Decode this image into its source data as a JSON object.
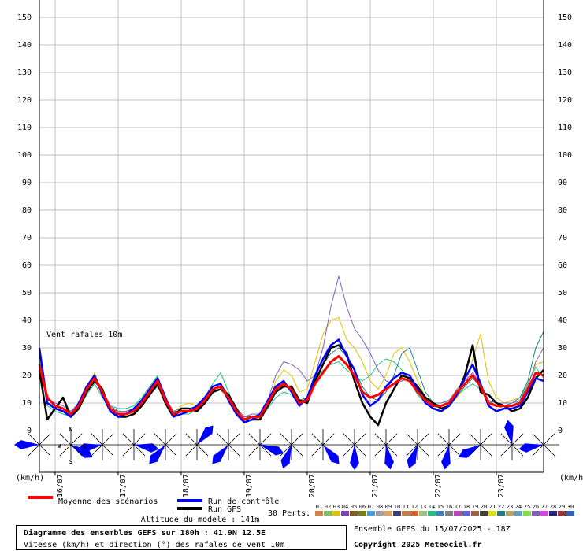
{
  "chart_data": {
    "type": "line",
    "title": "Diagramme des ensembles GEFS sur 180h : 41.9N 12.5E",
    "subtitle": "Vitesse (km/h) et direction (°) des rafales de vent 10m",
    "annotation": "Vent rafales 10m",
    "y_label": "(km/h)",
    "altitude": "Altitude du modele : 141m",
    "run_info": "Ensemble GEFS du 15/07/2025 - 18Z",
    "copyright": "Copyright 2025 Meteociel.fr",
    "perturbations_label": "30 Perts.",
    "compass": [
      "N",
      "W",
      "E",
      "S"
    ],
    "grid": true,
    "xlim": [
      0,
      192
    ],
    "xticks": [
      {
        "value": 6,
        "label": "16/07"
      },
      {
        "value": 30,
        "label": "17/07"
      },
      {
        "value": 54,
        "label": "18/07"
      },
      {
        "value": 78,
        "label": "19/07"
      },
      {
        "value": 102,
        "label": "20/07"
      },
      {
        "value": 126,
        "label": "21/07"
      },
      {
        "value": 150,
        "label": "22/07"
      },
      {
        "value": 174,
        "label": "23/07"
      }
    ],
    "ylim": [
      0,
      150
    ],
    "yticks": [
      0,
      10,
      20,
      30,
      40,
      50,
      60,
      70,
      80,
      90,
      100,
      110,
      120,
      130,
      140,
      150
    ],
    "x": [
      0,
      3,
      6,
      9,
      12,
      15,
      18,
      21,
      24,
      27,
      30,
      33,
      36,
      39,
      42,
      45,
      48,
      51,
      54,
      57,
      60,
      63,
      66,
      69,
      72,
      75,
      78,
      81,
      84,
      87,
      90,
      93,
      96,
      99,
      102,
      105,
      108,
      111,
      114,
      117,
      120,
      123,
      126,
      129,
      132,
      135,
      138,
      141,
      144,
      147,
      150,
      153,
      156,
      159,
      162,
      165,
      168,
      171,
      174,
      177,
      180,
      183,
      186,
      189,
      192
    ],
    "series": [
      {
        "name": "Moyenne des scénarios",
        "color": "#ff0000",
        "values": [
          24,
          12,
          9,
          8,
          6,
          9,
          15,
          19,
          14,
          8,
          6,
          6,
          7,
          10,
          14,
          18,
          11,
          6,
          7,
          7,
          8,
          11,
          15,
          16,
          12,
          7,
          4,
          5,
          5,
          10,
          15,
          17,
          15,
          10,
          11,
          17,
          21,
          25,
          27,
          24,
          20,
          14,
          12,
          13,
          15,
          17,
          19,
          18,
          14,
          11,
          9,
          9,
          10,
          14,
          17,
          20,
          16,
          10,
          9,
          9,
          9,
          10,
          15,
          21,
          20
        ]
      },
      {
        "name": "Run de contrôle",
        "color": "#0000ff",
        "values": [
          30,
          10,
          8,
          7,
          5,
          10,
          16,
          20,
          13,
          7,
          5,
          6,
          8,
          11,
          15,
          19,
          12,
          5,
          6,
          7,
          9,
          12,
          16,
          17,
          11,
          6,
          3,
          4,
          6,
          11,
          16,
          18,
          14,
          9,
          12,
          20,
          26,
          31,
          33,
          27,
          22,
          13,
          9,
          11,
          16,
          19,
          21,
          20,
          15,
          10,
          8,
          7,
          9,
          13,
          19,
          24,
          17,
          9,
          7,
          8,
          8,
          9,
          14,
          19,
          18
        ]
      },
      {
        "name": "Run GFS",
        "color": "#000000",
        "values": [
          22,
          4,
          8,
          12,
          5,
          8,
          14,
          18,
          15,
          7,
          5,
          5,
          6,
          9,
          13,
          17,
          10,
          5,
          8,
          8,
          7,
          10,
          14,
          15,
          13,
          8,
          3,
          4,
          4,
          9,
          14,
          16,
          16,
          11,
          10,
          18,
          24,
          30,
          31,
          28,
          18,
          10,
          5,
          2,
          10,
          15,
          20,
          19,
          16,
          12,
          10,
          8,
          9,
          13,
          20,
          31,
          14,
          13,
          10,
          9,
          7,
          8,
          12,
          19,
          22
        ]
      }
    ],
    "perturbations": [
      {
        "label": "01",
        "color": "#e08040"
      },
      {
        "label": "02",
        "color": "#80c060"
      },
      {
        "label": "03",
        "color": "#e0c000",
        "values": [
          20,
          13,
          8,
          7,
          6,
          8,
          14,
          21,
          13,
          7,
          5,
          5,
          6,
          9,
          13,
          17,
          10,
          6,
          9,
          10,
          9,
          10,
          14,
          15,
          11,
          6,
          4,
          5,
          4,
          9,
          18,
          22,
          20,
          14,
          15,
          25,
          35,
          40,
          41,
          33,
          30,
          25,
          18,
          15,
          20,
          28,
          30,
          25,
          18,
          12,
          8,
          7,
          9,
          12,
          16,
          26,
          35,
          18,
          12,
          10,
          11,
          12,
          17,
          24,
          25
        ]
      },
      {
        "label": "04",
        "color": "#8040c0"
      },
      {
        "label": "05",
        "color": "#806020"
      },
      {
        "label": "06",
        "color": "#808000"
      },
      {
        "label": "07",
        "color": "#40a0e0"
      },
      {
        "label": "08",
        "color": "#a0a0a0"
      },
      {
        "label": "09",
        "color": "#e0a060"
      },
      {
        "label": "10",
        "color": "#404080"
      },
      {
        "label": "11",
        "color": "#c08040"
      },
      {
        "label": "12",
        "color": "#e06020"
      },
      {
        "label": "13",
        "color": "#a0c080"
      },
      {
        "label": "14",
        "color": "#20c080",
        "values": [
          26,
          9,
          7,
          6,
          5,
          8,
          13,
          17,
          12,
          9,
          8,
          8,
          9,
          12,
          16,
          20,
          11,
          6,
          6,
          6,
          8,
          12,
          17,
          21,
          14,
          7,
          4,
          4,
          5,
          8,
          12,
          14,
          13,
          9,
          12,
          18,
          22,
          24,
          25,
          22,
          20,
          18,
          20,
          24,
          26,
          25,
          22,
          18,
          13,
          10,
          8,
          9,
          11,
          13,
          15,
          17,
          15,
          11,
          9,
          8,
          9,
          11,
          17,
          23,
          19
        ]
      },
      {
        "label": "15",
        "color": "#4080c0"
      },
      {
        "label": "16",
        "color": "#808080"
      },
      {
        "label": "17",
        "color": "#c040c0"
      },
      {
        "label": "18",
        "color": "#6060e0"
      },
      {
        "label": "19",
        "color": "#a06040"
      },
      {
        "label": "20",
        "color": "#404040"
      },
      {
        "label": "21",
        "color": "#e0e000"
      },
      {
        "label": "22",
        "color": "#208080",
        "values": [
          24,
          10,
          9,
          8,
          7,
          9,
          14,
          18,
          14,
          8,
          7,
          7,
          8,
          10,
          13,
          16,
          11,
          7,
          7,
          7,
          8,
          10,
          14,
          15,
          12,
          8,
          5,
          5,
          6,
          10,
          14,
          16,
          15,
          11,
          12,
          19,
          24,
          28,
          30,
          27,
          22,
          16,
          12,
          11,
          14,
          20,
          28,
          30,
          22,
          14,
          10,
          9,
          10,
          13,
          16,
          19,
          16,
          11,
          9,
          9,
          10,
          12,
          18,
          30,
          36
        ]
      },
      {
        "label": "23",
        "color": "#c0a060"
      },
      {
        "label": "24",
        "color": "#60a0c0"
      },
      {
        "label": "25",
        "color": "#80e040"
      },
      {
        "label": "26",
        "color": "#8060c0",
        "values": [
          28,
          11,
          10,
          9,
          7,
          10,
          16,
          20,
          15,
          9,
          7,
          7,
          8,
          11,
          15,
          19,
          12,
          7,
          8,
          8,
          9,
          12,
          16,
          17,
          13,
          8,
          5,
          6,
          6,
          11,
          20,
          25,
          24,
          22,
          18,
          20,
          30,
          45,
          56,
          45,
          37,
          33,
          28,
          22,
          18,
          17,
          18,
          19,
          15,
          12,
          10,
          10,
          11,
          15,
          18,
          21,
          17,
          11,
          10,
          10,
          10,
          11,
          16,
          25,
          30
        ]
      },
      {
        "label": "27",
        "color": "#e040e0"
      },
      {
        "label": "28",
        "color": "#202080"
      },
      {
        "label": "29",
        "color": "#a03030"
      },
      {
        "label": "30",
        "color": "#3060c0"
      }
    ],
    "wind_roses": {
      "color": "#0000ff",
      "x": [
        0,
        12,
        24,
        36,
        48,
        60,
        72,
        84,
        96,
        108,
        120,
        132,
        144,
        156,
        168,
        180,
        192
      ],
      "direction": [
        270,
        120,
        260,
        100,
        220,
        40,
        220,
        110,
        200,
        140,
        180,
        170,
        200,
        190,
        240,
        350,
        260
      ]
    }
  }
}
